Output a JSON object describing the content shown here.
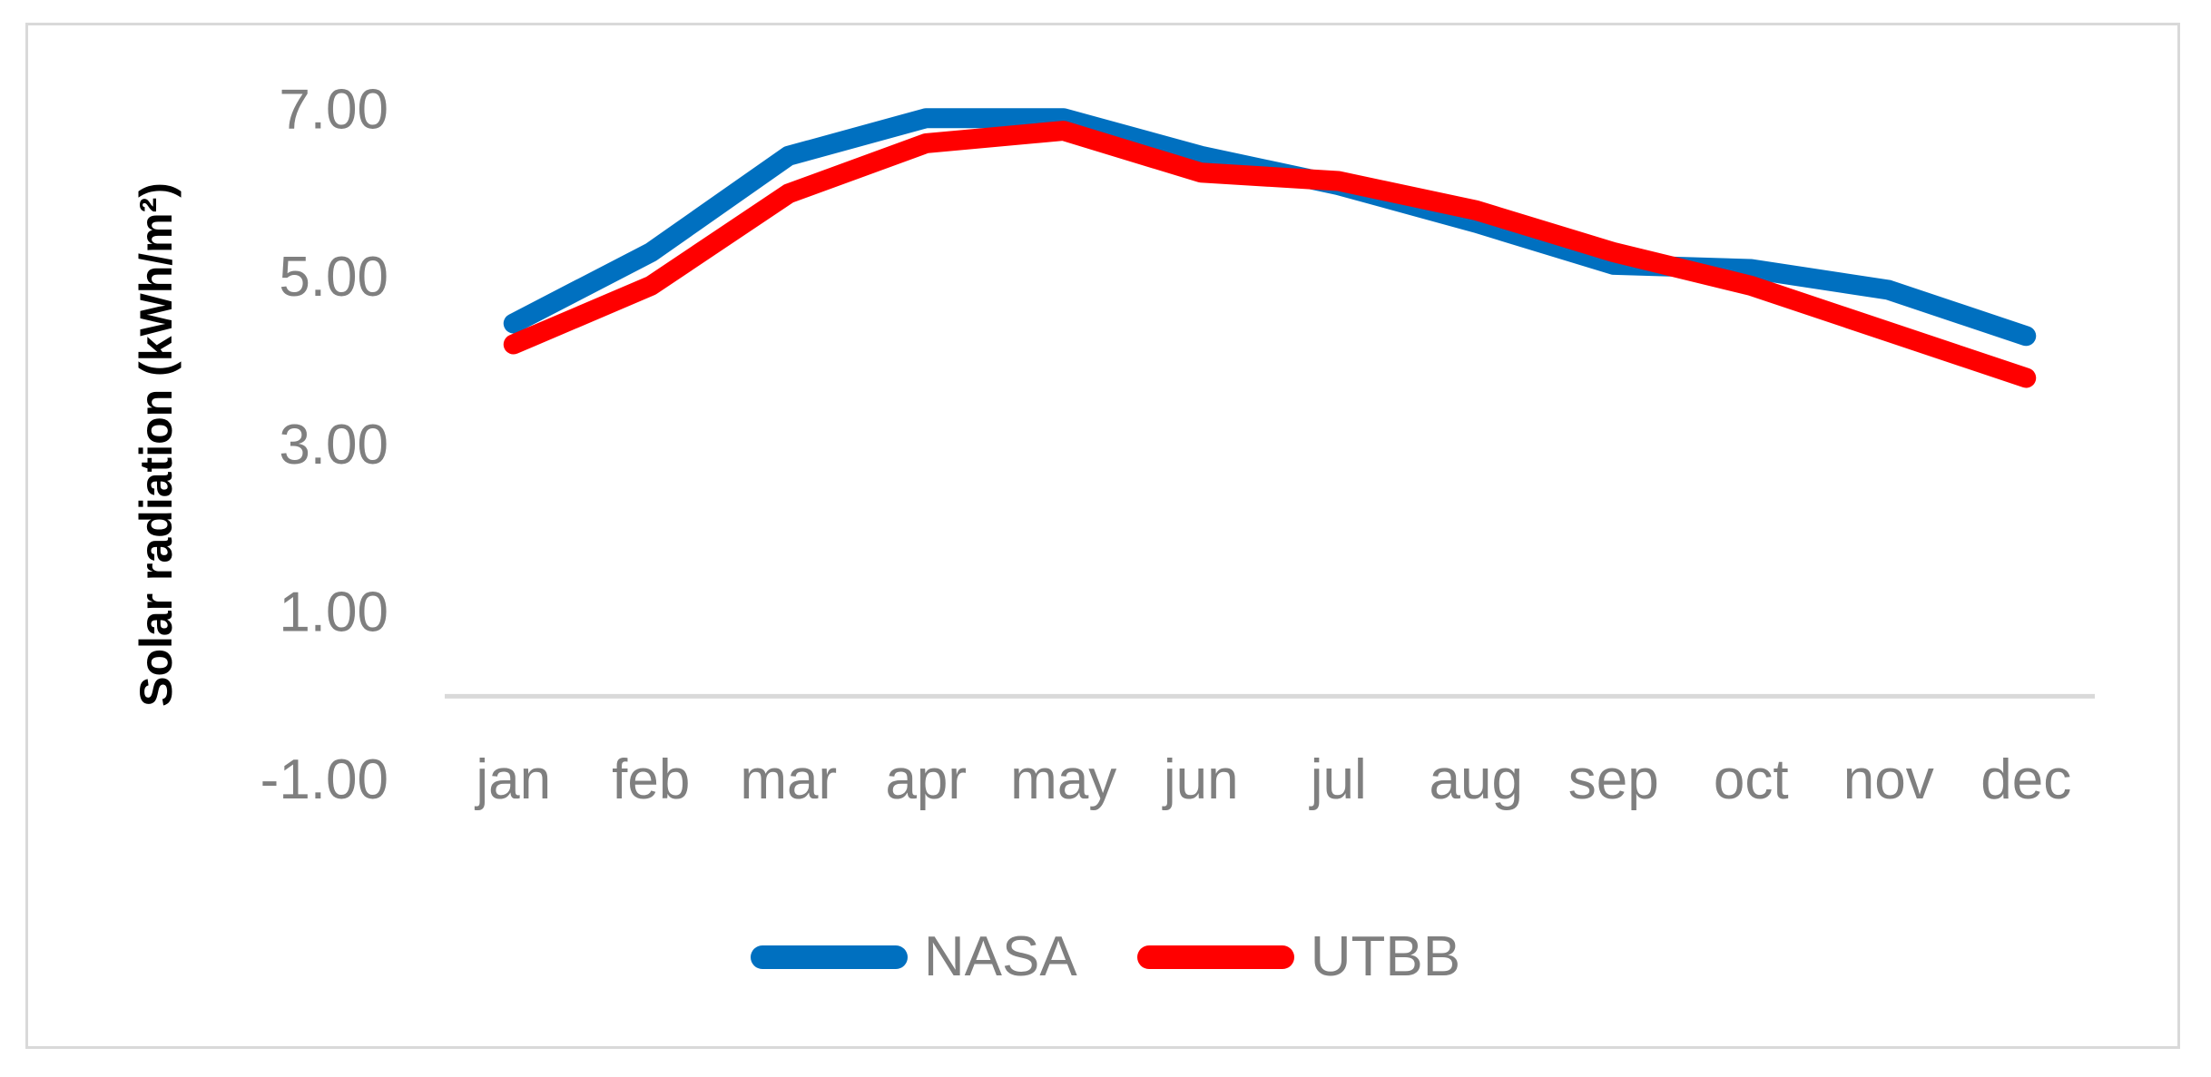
{
  "chart_data": {
    "type": "line",
    "title": "",
    "xlabel": "",
    "ylabel": "Solar radiation (kWh/m²)",
    "categories": [
      "jan",
      "feb",
      "mar",
      "apr",
      "may",
      "jun",
      "jul",
      "aug",
      "sep",
      "oct",
      "nov",
      "dec"
    ],
    "series": [
      {
        "name": "NASA",
        "color": "#0070C0",
        "values": [
          4.45,
          5.3,
          6.45,
          6.9,
          6.9,
          6.45,
          6.1,
          5.65,
          5.15,
          5.1,
          4.85,
          4.3
        ]
      },
      {
        "name": "UTBB",
        "color": "#FF0000",
        "values": [
          4.2,
          4.9,
          6.0,
          6.6,
          6.75,
          6.25,
          6.15,
          5.8,
          5.3,
          4.9,
          4.35,
          3.8
        ]
      }
    ],
    "yticks": [
      7,
      5,
      3,
      1,
      -1
    ],
    "ytick_labels": [
      "7.00",
      "5.00",
      "3.00",
      "1.00",
      "-1.00"
    ],
    "ylim": [
      -1,
      7
    ],
    "grid": false,
    "legend_position": "bottom",
    "axis_color": "#D9D9D9",
    "label_color": "#7F7F7F",
    "line_width": 22
  }
}
